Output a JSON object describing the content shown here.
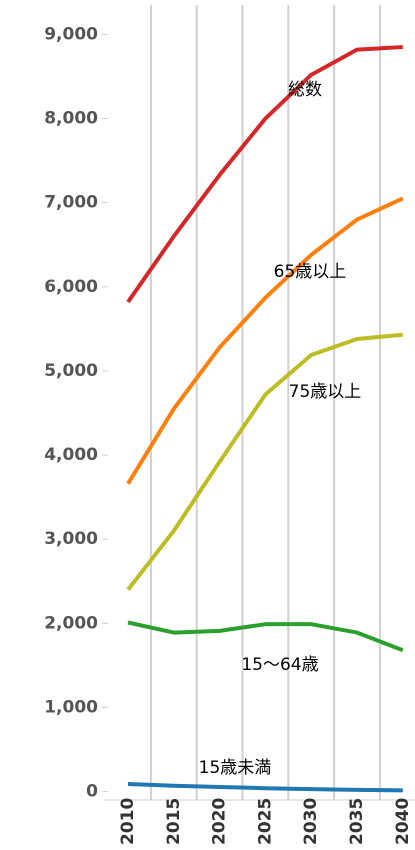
{
  "chart_data": {
    "type": "line",
    "categories": [
      "2010",
      "2015",
      "2020",
      "2025",
      "2030",
      "2035",
      "2040"
    ],
    "series": [
      {
        "name": "総数",
        "color": "#d62728",
        "values": [
          5820,
          6600,
          7330,
          8000,
          8520,
          8820,
          8850
        ]
      },
      {
        "name": "65歳以上",
        "color": "#ff7f0e",
        "values": [
          3660,
          4550,
          5280,
          5870,
          6380,
          6800,
          7050
        ]
      },
      {
        "name": "75歳以上",
        "color": "#bcbd22",
        "values": [
          2400,
          3100,
          3920,
          4720,
          5190,
          5380,
          5430
        ]
      },
      {
        "name": "15〜64歳",
        "color": "#2ca02c",
        "values": [
          2010,
          1890,
          1910,
          1990,
          1990,
          1890,
          1680
        ]
      },
      {
        "name": "15歳未満",
        "color": "#1f77b4",
        "values": [
          90,
          70,
          55,
          40,
          30,
          20,
          15
        ]
      }
    ],
    "ylim": [
      -100,
      9350
    ],
    "yticks": [
      0,
      {
        "value": 1000,
        "label": "1,000"
      },
      {
        "value": 2000,
        "label": "2,000"
      },
      {
        "value": 3000,
        "label": "3,000"
      },
      {
        "value": 4000,
        "label": "4,000"
      },
      {
        "value": 5000,
        "label": "5,000"
      },
      {
        "value": 6000,
        "label": "6,000"
      },
      {
        "value": 7000,
        "label": "7,000"
      },
      {
        "value": 8000,
        "label": "8,000"
      },
      {
        "value": 9000,
        "label": "9,000"
      }
    ],
    "grid": true
  }
}
